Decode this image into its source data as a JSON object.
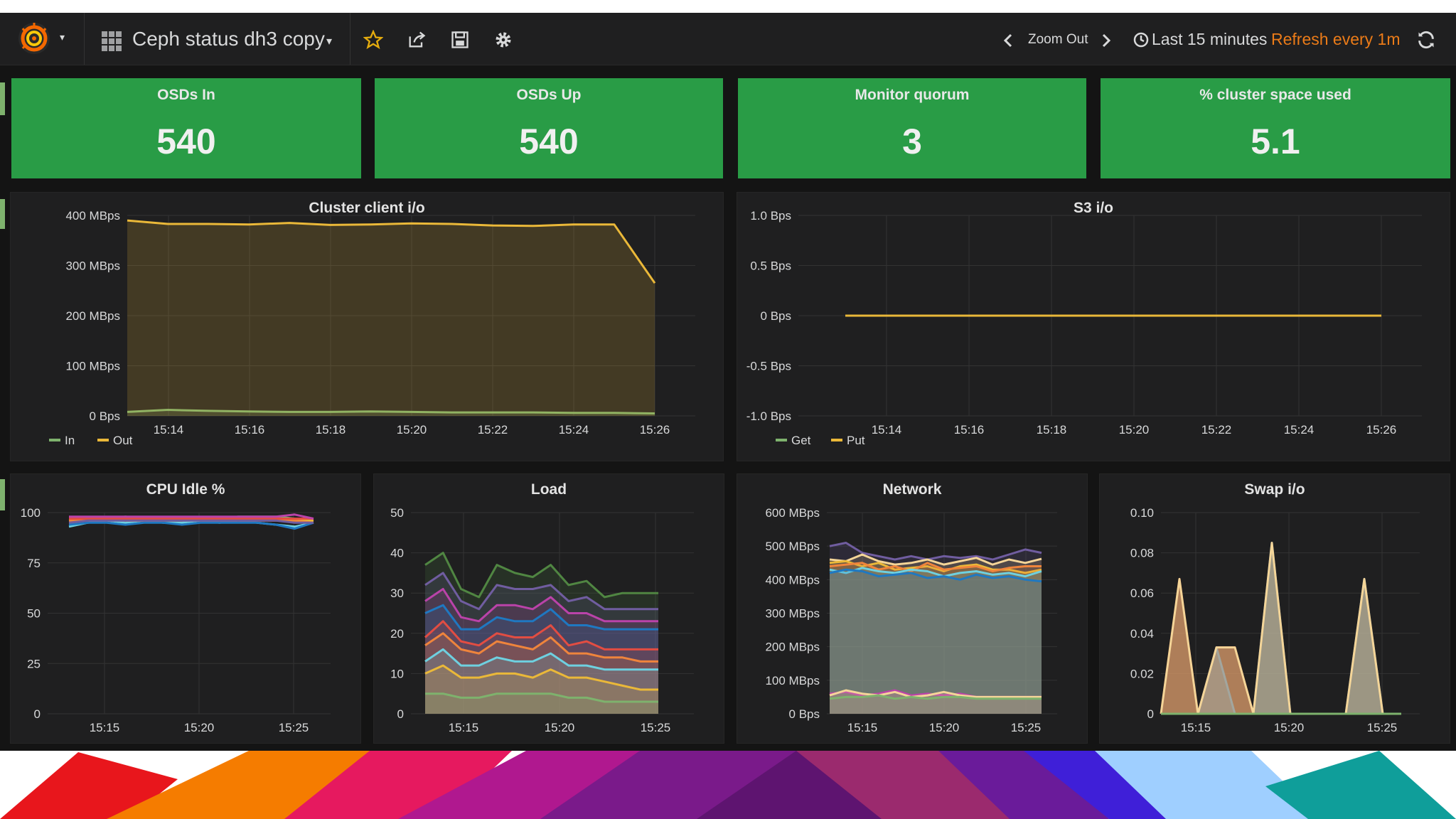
{
  "navbar": {
    "title": "Ceph status dh3 copy",
    "zoom_label": "Zoom Out",
    "time_range": "Last 15 minutes",
    "refresh_label": "Refresh every 1m",
    "icons": [
      "grafana-logo-icon",
      "dashboard-grid-icon",
      "star-icon",
      "share-icon",
      "save-icon",
      "gear-icon",
      "chevron-left-icon",
      "chevron-right-icon",
      "clock-icon",
      "refresh-icon"
    ],
    "colors": {
      "refresh": "#eb7b18",
      "star": "#e5ac0e"
    }
  },
  "stats": [
    {
      "title": "OSDs In",
      "value": "540"
    },
    {
      "title": "OSDs Up",
      "value": "540"
    },
    {
      "title": "Monitor quorum",
      "value": "3"
    },
    {
      "title": "% cluster space used",
      "value": "5.1"
    }
  ],
  "stat_color": "#299c46",
  "panels": {
    "cluster_io": {
      "title": "Cluster client i/o"
    },
    "s3_io": {
      "title": "S3 i/o"
    },
    "cpu": {
      "title": "CPU Idle %"
    },
    "load": {
      "title": "Load"
    },
    "network": {
      "title": "Network"
    },
    "swap": {
      "title": "Swap i/o"
    }
  },
  "chart_data": [
    {
      "id": "cluster_io",
      "type": "area",
      "title": "Cluster client i/o",
      "x": [
        "15:13",
        "15:14",
        "15:15",
        "15:16",
        "15:17",
        "15:18",
        "15:19",
        "15:20",
        "15:21",
        "15:22",
        "15:23",
        "15:24",
        "15:25",
        "15:26"
      ],
      "xticks": [
        "15:14",
        "15:16",
        "15:18",
        "15:20",
        "15:22",
        "15:24",
        "15:26"
      ],
      "yticks": [
        "0 Bps",
        "100 MBps",
        "200 MBps",
        "300 MBps",
        "400 MBps"
      ],
      "ylim": [
        0,
        400
      ],
      "series": [
        {
          "name": "In",
          "color": "#7eb26d",
          "values": [
            8,
            12,
            10,
            9,
            8,
            8,
            9,
            8,
            7,
            7,
            7,
            6,
            6,
            5
          ]
        },
        {
          "name": "Out",
          "color": "#eab839",
          "values": [
            390,
            383,
            383,
            382,
            385,
            381,
            382,
            384,
            383,
            380,
            379,
            382,
            382,
            265
          ]
        }
      ],
      "legend": "bottom-left"
    },
    {
      "id": "s3_io",
      "type": "line",
      "title": "S3 i/o",
      "x": [
        "15:13",
        "15:26"
      ],
      "xticks": [
        "15:14",
        "15:16",
        "15:18",
        "15:20",
        "15:22",
        "15:24",
        "15:26"
      ],
      "yticks": [
        "-1.0 Bps",
        "-0.5 Bps",
        "0 Bps",
        "0.5 Bps",
        "1.0 Bps"
      ],
      "ylim": [
        -1,
        1
      ],
      "series": [
        {
          "name": "Get",
          "color": "#7eb26d",
          "values": [
            0,
            0
          ]
        },
        {
          "name": "Put",
          "color": "#eab839",
          "values": [
            0,
            0
          ]
        }
      ],
      "legend": "bottom-left"
    },
    {
      "id": "cpu",
      "type": "line",
      "title": "CPU Idle %",
      "x": [
        "15:13",
        "15:14",
        "15:15",
        "15:16",
        "15:17",
        "15:18",
        "15:19",
        "15:20",
        "15:21",
        "15:22",
        "15:23",
        "15:24",
        "15:25",
        "15:26"
      ],
      "xticks": [
        "15:15",
        "15:20",
        "15:25"
      ],
      "yticks": [
        "0",
        "25",
        "50",
        "75",
        "100"
      ],
      "ylim": [
        0,
        100
      ],
      "series": [
        {
          "color": "#7eb26d",
          "values": [
            97,
            97,
            97,
            98,
            97,
            97,
            97,
            97,
            97,
            98,
            98,
            98,
            97,
            96
          ]
        },
        {
          "color": "#eab839",
          "values": [
            96,
            97,
            96,
            97,
            96,
            96,
            96,
            96,
            96,
            97,
            97,
            97,
            96,
            96
          ]
        },
        {
          "color": "#6ed0e0",
          "values": [
            93,
            95,
            96,
            95,
            96,
            95,
            95,
            96,
            95,
            96,
            95,
            94,
            93,
            95
          ]
        },
        {
          "color": "#ef843c",
          "values": [
            96,
            96,
            97,
            96,
            96,
            96,
            97,
            96,
            96,
            96,
            96,
            96,
            96,
            95
          ]
        },
        {
          "color": "#e24d42",
          "values": [
            97,
            97,
            97,
            97,
            97,
            97,
            97,
            97,
            97,
            97,
            97,
            97,
            97,
            97
          ]
        },
        {
          "color": "#1f78c1",
          "values": [
            94,
            95,
            95,
            94,
            95,
            95,
            94,
            95,
            95,
            95,
            95,
            94,
            92,
            95
          ]
        },
        {
          "color": "#ba43a9",
          "values": [
            98,
            98,
            98,
            98,
            98,
            98,
            98,
            98,
            98,
            98,
            98,
            98,
            99,
            97
          ]
        },
        {
          "color": "#705da0",
          "values": [
            95,
            96,
            96,
            96,
            96,
            96,
            96,
            96,
            96,
            96,
            96,
            96,
            95,
            95
          ]
        }
      ]
    },
    {
      "id": "load",
      "type": "area",
      "title": "Load",
      "x": [
        "15:12",
        "15:13",
        "15:14",
        "15:15",
        "15:16",
        "15:17",
        "15:18",
        "15:19",
        "15:20",
        "15:21",
        "15:22",
        "15:23",
        "15:24",
        "15:25"
      ],
      "xticks": [
        "15:15",
        "15:20",
        "15:25"
      ],
      "yticks": [
        "0",
        "10",
        "20",
        "30",
        "40",
        "50"
      ],
      "ylim": [
        0,
        50
      ],
      "series": [
        {
          "color": "#508642",
          "values": [
            37,
            40,
            31,
            29,
            37,
            35,
            34,
            37,
            32,
            33,
            29,
            30,
            30,
            30
          ]
        },
        {
          "color": "#705da0",
          "values": [
            32,
            35,
            28,
            26,
            32,
            31,
            31,
            32,
            28,
            29,
            26,
            26,
            26,
            26
          ]
        },
        {
          "color": "#ba43a9",
          "values": [
            28,
            31,
            24,
            23,
            27,
            27,
            26,
            29,
            25,
            25,
            23,
            23,
            23,
            23
          ]
        },
        {
          "color": "#1f78c1",
          "values": [
            25,
            27,
            21,
            21,
            24,
            23,
            23,
            26,
            22,
            22,
            21,
            21,
            21,
            21
          ]
        },
        {
          "color": "#e24d42",
          "values": [
            19,
            23,
            18,
            17,
            20,
            19,
            19,
            22,
            17,
            18,
            16,
            16,
            16,
            16
          ]
        },
        {
          "color": "#ef843c",
          "values": [
            17,
            20,
            16,
            15,
            18,
            17,
            16,
            19,
            15,
            15,
            14,
            14,
            13,
            13
          ]
        },
        {
          "color": "#6ed0e0",
          "values": [
            13,
            16,
            12,
            12,
            14,
            13,
            13,
            15,
            12,
            12,
            11,
            11,
            11,
            11
          ]
        },
        {
          "color": "#eab839",
          "values": [
            10,
            12,
            9,
            9,
            10,
            10,
            9,
            11,
            9,
            9,
            8,
            7,
            6,
            6
          ]
        },
        {
          "color": "#7eb26d",
          "values": [
            5,
            5,
            4,
            4,
            5,
            5,
            5,
            5,
            4,
            4,
            3,
            3,
            3,
            3
          ]
        }
      ]
    },
    {
      "id": "network",
      "type": "area",
      "title": "Network",
      "x": [
        "15:13",
        "15:14",
        "15:15",
        "15:16",
        "15:17",
        "15:18",
        "15:19",
        "15:20",
        "15:21",
        "15:22",
        "15:23",
        "15:24",
        "15:25",
        "15:26"
      ],
      "xticks": [
        "15:15",
        "15:20",
        "15:25"
      ],
      "yticks": [
        "0 Bps",
        "100 MBps",
        "200 MBps",
        "300 MBps",
        "400 MBps",
        "500 MBps",
        "600 MBps"
      ],
      "ylim": [
        0,
        600
      ],
      "series": [
        {
          "color": "#705da0",
          "values": [
            500,
            510,
            480,
            470,
            460,
            470,
            460,
            470,
            465,
            470,
            460,
            475,
            490,
            480
          ]
        },
        {
          "color": "#f4d598",
          "values": [
            460,
            455,
            475,
            455,
            445,
            450,
            460,
            445,
            455,
            465,
            445,
            460,
            450,
            462
          ]
        },
        {
          "color": "#eab839",
          "values": [
            450,
            455,
            440,
            450,
            430,
            435,
            440,
            425,
            440,
            445,
            430,
            430,
            420,
            430
          ]
        },
        {
          "color": "#ef843c",
          "values": [
            440,
            445,
            450,
            430,
            440,
            425,
            450,
            430,
            435,
            440,
            425,
            435,
            440,
            440
          ]
        },
        {
          "color": "#6ed0e0",
          "values": [
            430,
            420,
            435,
            425,
            420,
            430,
            425,
            410,
            420,
            425,
            415,
            420,
            410,
            425
          ]
        },
        {
          "color": "#1f78c1",
          "values": [
            420,
            430,
            425,
            410,
            415,
            420,
            405,
            410,
            400,
            415,
            405,
            410,
            400,
            395
          ]
        },
        {
          "color": "#ba43a9",
          "values": [
            60,
            65,
            55,
            60,
            70,
            55,
            60,
            55,
            60,
            50,
            50,
            50,
            50,
            50
          ]
        },
        {
          "color": "#f4d598",
          "values": [
            55,
            70,
            60,
            55,
            65,
            50,
            55,
            65,
            55,
            50,
            50,
            50,
            50,
            50
          ]
        },
        {
          "color": "#7eb26d",
          "values": [
            45,
            50,
            50,
            55,
            45,
            50,
            45,
            50,
            50,
            45,
            45,
            45,
            45,
            45
          ]
        }
      ]
    },
    {
      "id": "swap",
      "type": "area",
      "title": "Swap i/o",
      "x": [
        "15:13",
        "15:26"
      ],
      "xticks": [
        "15:15",
        "15:20",
        "15:25"
      ],
      "yticks": [
        "0",
        "0.02",
        "0.04",
        "0.06",
        "0.08",
        "0.10"
      ],
      "ylim": [
        0,
        0.1
      ],
      "series": [
        {
          "color": "#890f02",
          "values": [
            [
              0,
              0
            ],
            [
              1,
              0.067
            ],
            [
              2,
              0
            ],
            [
              3,
              0.033
            ],
            [
              4,
              0.033
            ],
            [
              5,
              0
            ],
            [
              6,
              0
            ],
            [
              7,
              0
            ],
            [
              8,
              0
            ],
            [
              9,
              0
            ],
            [
              10,
              0
            ],
            [
              11,
              0
            ],
            [
              12,
              0
            ],
            [
              13,
              0
            ]
          ]
        },
        {
          "color": "#3f6ea8",
          "values": [
            [
              0,
              0
            ],
            [
              1,
              0
            ],
            [
              2,
              0
            ],
            [
              3,
              0.033
            ],
            [
              4,
              0
            ],
            [
              5,
              0
            ],
            [
              6,
              0.085
            ],
            [
              7,
              0
            ],
            [
              8,
              0
            ],
            [
              9,
              0
            ],
            [
              10,
              0
            ],
            [
              11,
              0.067
            ],
            [
              12,
              0
            ],
            [
              13,
              0
            ]
          ]
        },
        {
          "color": "#f4d598",
          "values": [
            [
              0,
              0
            ],
            [
              1,
              0.067
            ],
            [
              2,
              0
            ],
            [
              3,
              0.033
            ],
            [
              4,
              0.033
            ],
            [
              5,
              0
            ],
            [
              6,
              0.085
            ],
            [
              7,
              0
            ],
            [
              8,
              0
            ],
            [
              9,
              0
            ],
            [
              10,
              0
            ],
            [
              11,
              0.067
            ],
            [
              12,
              0
            ],
            [
              13,
              0
            ]
          ]
        },
        {
          "color": "#7eb26d",
          "values": [
            [
              0,
              0
            ],
            [
              13,
              0
            ]
          ]
        }
      ]
    }
  ]
}
